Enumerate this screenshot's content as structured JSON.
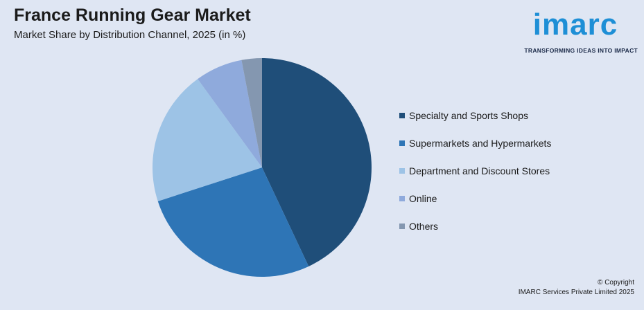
{
  "header": {
    "title": "France Running Gear Market",
    "subtitle": "Market Share by Distribution Channel, 2025 (in %)"
  },
  "logo": {
    "wordmark": "imarc",
    "tagline": "TRANSFORMING IDEAS INTO IMPACT"
  },
  "chart_data": {
    "type": "pie",
    "title": "France Running Gear Market",
    "subtitle": "Market Share by Distribution Channel, 2025 (in %)",
    "categories": [
      "Specialty and Sports Shops",
      "Supermarkets and Hypermarkets",
      "Department and Discount Stores",
      "Online",
      "Others"
    ],
    "values": [
      43,
      27,
      20,
      7,
      3
    ],
    "colors": [
      "#1f4e79",
      "#2e75b6",
      "#9dc3e6",
      "#8faadc",
      "#8497b0"
    ],
    "legend_position": "right"
  },
  "footer": {
    "copyright_line1": "© Copyright",
    "copyright_line2": "IMARC Services Private Limited 2025"
  }
}
